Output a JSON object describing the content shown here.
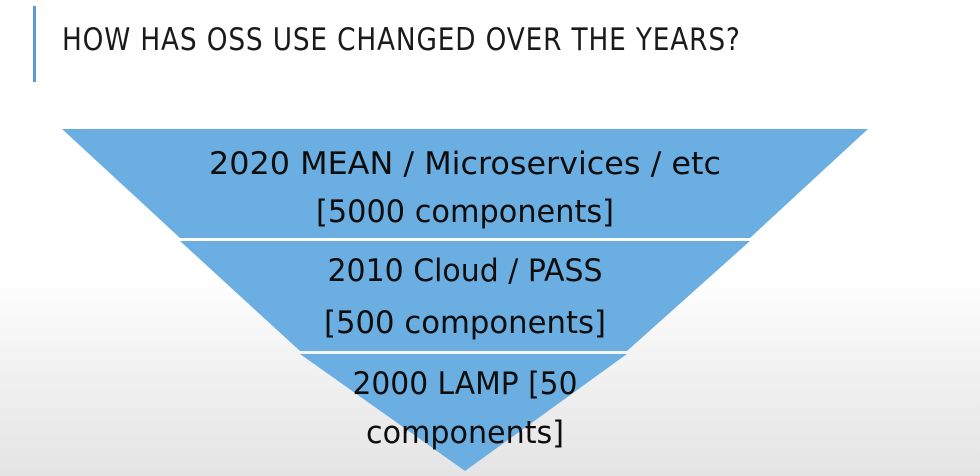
{
  "slide": {
    "title": "HOW HAS OSS USE CHANGED OVER THE YEARS?"
  },
  "pyramid": {
    "fill_color": "#6aaee2",
    "separator_color": "#ffffff",
    "layers": [
      {
        "line1": "2020 MEAN / Microservices / etc",
        "line2": "[5000 components]"
      },
      {
        "line1": "2010 Cloud / PASS",
        "line2": "[500 components]"
      },
      {
        "line1": "2000 LAMP [50",
        "line2": "components]"
      }
    ]
  }
}
